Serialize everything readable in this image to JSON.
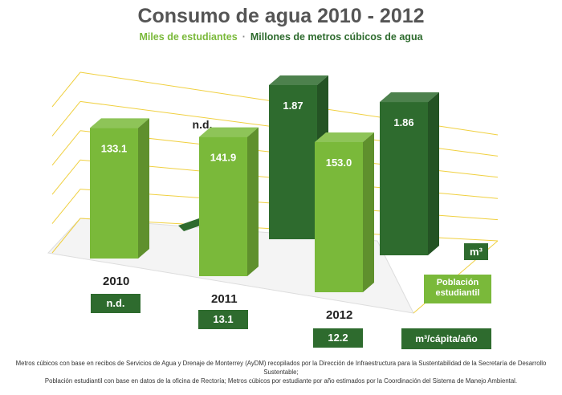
{
  "title": "Consumo de agua 2010 - 2012",
  "subtitle": {
    "students_label": "Miles de estudiantes",
    "separator": "·",
    "water_label": "Millones de metros cúbicos de agua"
  },
  "colors": {
    "students": "#7ab93a",
    "water": "#2e6b2e",
    "grid": "#f0d040"
  },
  "chart_data": {
    "type": "bar",
    "categories": [
      "2010",
      "2011",
      "2012"
    ],
    "series": [
      {
        "name": "Población estudiantil",
        "values": [
          133.1,
          141.9,
          153.0
        ],
        "labels": [
          "133.1",
          "141.9",
          "153.0"
        ]
      },
      {
        "name": "m³",
        "values": [
          null,
          1.87,
          1.86
        ],
        "labels": [
          "n.d.",
          "1.87",
          "1.86"
        ]
      }
    ],
    "per_capita": {
      "name": "m³/cápita/año",
      "values": [
        null,
        13.1,
        12.2
      ],
      "labels": [
        "n.d.",
        "13.1",
        "12.2"
      ]
    },
    "legend": {
      "water": "m³",
      "students_line1": "Población",
      "students_line2": "estudiantil",
      "per_capita": "m³/cápita/año"
    },
    "legend_position": "right",
    "grid": true
  },
  "footnote": {
    "line1": "Metros cúbicos con base en recibos de Servicios de Agua y Drenaje de Monterrey (AyDM) recopilados por la Dirección de Infraestructura para la Sustentabilidad de la Secretaría de Desarrollo Sustentable;",
    "line2": "Población estudiantil con base en datos de la oficina de Rectoría; Metros cúbicos por estudiante por año estimados por la Coordinación del Sistema de Manejo Ambiental."
  }
}
